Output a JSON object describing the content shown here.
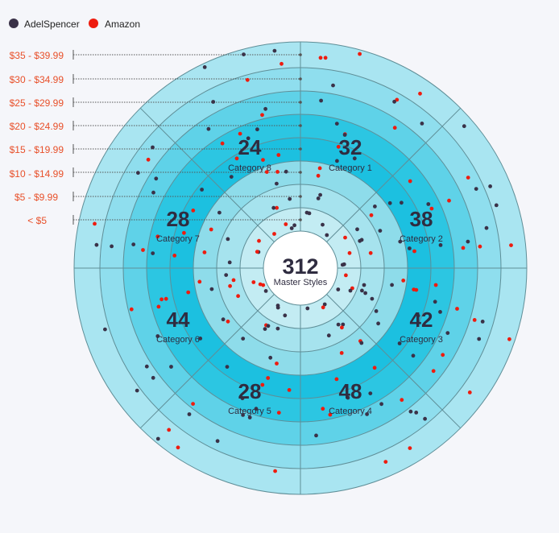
{
  "chart_data": {
    "type": "radial-segmented-scatter",
    "center": {
      "value": "312",
      "label": "Master Styles"
    },
    "legend": [
      {
        "name": "AdelSpencer",
        "color": "#3a3248"
      },
      {
        "name": "Amazon",
        "color": "#ee1c0f"
      }
    ],
    "price_bands": [
      "< $5",
      "$5 - $9.99",
      "$10 - $14.99",
      "$15 - $19.99",
      "$20 - $24.99",
      "$25 - $29.99",
      "$30 - $34.99",
      "$35 - $39.99"
    ],
    "categories": [
      {
        "name": "Category 1",
        "value": "32"
      },
      {
        "name": "Category 2",
        "value": "38"
      },
      {
        "name": "Category 3",
        "value": "42"
      },
      {
        "name": "Category 4",
        "value": "48"
      },
      {
        "name": "Category 5",
        "value": "28"
      },
      {
        "name": "Category 6",
        "value": "44"
      },
      {
        "name": "Category 7",
        "value": "28"
      },
      {
        "name": "Category 8",
        "value": "24"
      }
    ],
    "band_colors": [
      "#ffffff",
      "#c3ecf3",
      "#a6e3ee",
      "#8edcea",
      "#1cc0e0",
      "#2cc6e2",
      "#5fd2e8",
      "#8fdeee",
      "#a9e5f1"
    ],
    "grid_color": "#5f8e97"
  }
}
